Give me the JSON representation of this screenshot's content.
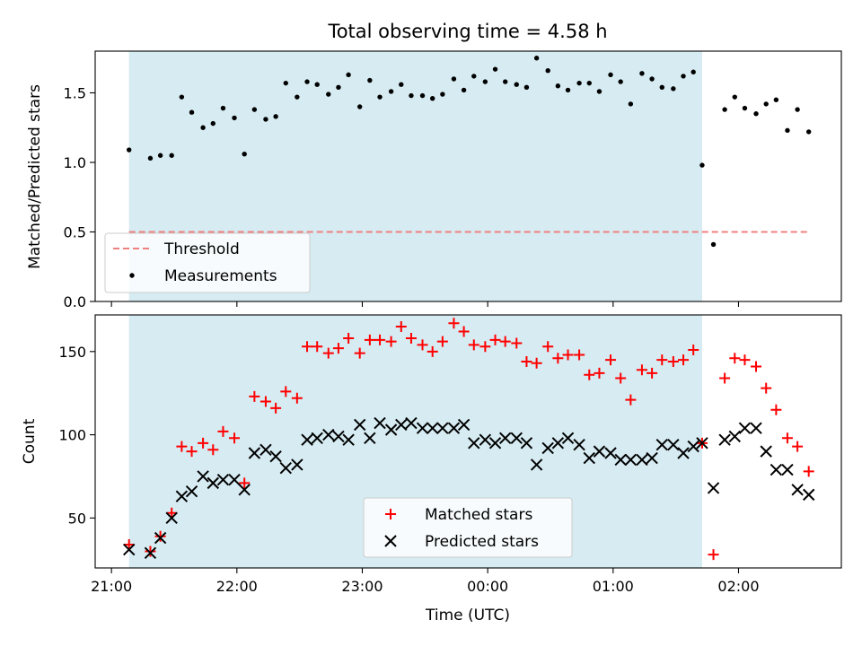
{
  "figure": {
    "title": "Total observing time = 4.58 h",
    "xlabel": "Time (UTC)",
    "xticks": [
      {
        "label": "21:00",
        "value": 21.0
      },
      {
        "label": "22:00",
        "value": 22.0
      },
      {
        "label": "23:00",
        "value": 23.0
      },
      {
        "label": "00:00",
        "value": 24.0
      },
      {
        "label": "01:00",
        "value": 25.0
      },
      {
        "label": "02:00",
        "value": 26.0
      }
    ]
  },
  "chart_data": [
    {
      "type": "scatter",
      "ylabel": "Matched/Predicted stars",
      "xlim": [
        20.87,
        26.82
      ],
      "ylim": [
        0.0,
        1.8
      ],
      "yticks": [
        "0.0",
        "0.5",
        "1.0",
        "1.5"
      ],
      "shaded_region": {
        "x_start": 21.14,
        "x_end": 25.71,
        "color": "#add8e6"
      },
      "threshold": {
        "name": "Threshold",
        "y": 0.5,
        "x_start": 21.14,
        "x_end": 26.57,
        "color": "#f08080"
      },
      "legend_position": "lower-left",
      "series": [
        {
          "name": "Measurements",
          "color": "#000000",
          "marker": "dot",
          "x": [
            21.14,
            21.31,
            21.39,
            21.48,
            21.56,
            21.64,
            21.73,
            21.81,
            21.89,
            21.98,
            22.06,
            22.14,
            22.23,
            22.31,
            22.39,
            22.48,
            22.56,
            22.64,
            22.73,
            22.81,
            22.89,
            22.98,
            23.06,
            23.14,
            23.23,
            23.31,
            23.39,
            23.48,
            23.56,
            23.64,
            23.73,
            23.81,
            23.89,
            23.98,
            24.06,
            24.14,
            24.23,
            24.31,
            24.39,
            24.48,
            24.56,
            24.64,
            24.73,
            24.81,
            24.89,
            24.98,
            25.06,
            25.14,
            25.23,
            25.31,
            25.39,
            25.48,
            25.56,
            25.64,
            25.71,
            25.8,
            25.89,
            25.97,
            26.05,
            26.14,
            26.22,
            26.3,
            26.39,
            26.47,
            26.56
          ],
          "y": [
            1.09,
            1.03,
            1.05,
            1.05,
            1.47,
            1.36,
            1.25,
            1.28,
            1.39,
            1.32,
            1.06,
            1.38,
            1.31,
            1.33,
            1.57,
            1.47,
            1.58,
            1.56,
            1.49,
            1.54,
            1.63,
            1.4,
            1.59,
            1.47,
            1.51,
            1.56,
            1.48,
            1.48,
            1.46,
            1.49,
            1.6,
            1.52,
            1.62,
            1.58,
            1.67,
            1.58,
            1.56,
            1.54,
            1.75,
            1.66,
            1.55,
            1.52,
            1.57,
            1.57,
            1.51,
            1.63,
            1.58,
            1.42,
            1.64,
            1.6,
            1.54,
            1.53,
            1.62,
            1.65,
            0.98,
            0.41,
            1.38,
            1.47,
            1.39,
            1.35,
            1.42,
            1.45,
            1.23,
            1.38,
            1.22
          ]
        }
      ]
    },
    {
      "type": "scatter",
      "ylabel": "Count",
      "xlim": [
        20.87,
        26.82
      ],
      "ylim": [
        20,
        172
      ],
      "yticks": [
        "50",
        "100",
        "150"
      ],
      "shaded_region": {
        "x_start": 21.14,
        "x_end": 25.71,
        "color": "#add8e6"
      },
      "legend_position": "lower-center",
      "series": [
        {
          "name": "Matched stars",
          "color": "#ff0000",
          "marker": "plus",
          "x": [
            21.14,
            21.31,
            21.39,
            21.48,
            21.56,
            21.64,
            21.73,
            21.81,
            21.89,
            21.98,
            22.06,
            22.14,
            22.23,
            22.31,
            22.39,
            22.48,
            22.56,
            22.64,
            22.73,
            22.81,
            22.89,
            22.98,
            23.06,
            23.14,
            23.23,
            23.31,
            23.39,
            23.48,
            23.56,
            23.64,
            23.73,
            23.81,
            23.89,
            23.98,
            24.06,
            24.14,
            24.23,
            24.31,
            24.39,
            24.48,
            24.56,
            24.64,
            24.73,
            24.81,
            24.89,
            24.98,
            25.06,
            25.14,
            25.23,
            25.31,
            25.39,
            25.48,
            25.56,
            25.64,
            25.71,
            25.8,
            25.89,
            25.97,
            26.05,
            26.14,
            26.22,
            26.3,
            26.39,
            26.47,
            26.56
          ],
          "y": [
            34,
            30,
            39,
            53,
            93,
            90,
            95,
            91,
            102,
            98,
            71,
            123,
            120,
            116,
            126,
            122,
            153,
            153,
            149,
            152,
            158,
            149,
            157,
            157,
            156,
            165,
            158,
            154,
            150,
            156,
            167,
            162,
            154,
            153,
            157,
            156,
            155,
            144,
            143,
            153,
            146,
            148,
            148,
            136,
            137,
            145,
            134,
            121,
            139,
            137,
            145,
            144,
            145,
            151,
            95,
            28,
            134,
            146,
            145,
            141,
            128,
            115,
            98,
            93,
            78
          ]
        },
        {
          "name": "Predicted stars",
          "color": "#000000",
          "marker": "x",
          "x": [
            21.14,
            21.31,
            21.39,
            21.48,
            21.56,
            21.64,
            21.73,
            21.81,
            21.89,
            21.98,
            22.06,
            22.14,
            22.23,
            22.31,
            22.39,
            22.48,
            22.56,
            22.64,
            22.73,
            22.81,
            22.89,
            22.98,
            23.06,
            23.14,
            23.23,
            23.31,
            23.39,
            23.48,
            23.56,
            23.64,
            23.73,
            23.81,
            23.89,
            23.98,
            24.06,
            24.14,
            24.23,
            24.31,
            24.39,
            24.48,
            24.56,
            24.64,
            24.73,
            24.81,
            24.89,
            24.98,
            25.06,
            25.14,
            25.23,
            25.31,
            25.39,
            25.48,
            25.56,
            25.64,
            25.71,
            25.8,
            25.89,
            25.97,
            26.05,
            26.14,
            26.22,
            26.3,
            26.39,
            26.47,
            26.56
          ],
          "y": [
            31,
            29,
            38,
            50,
            63,
            66,
            75,
            71,
            73,
            73,
            67,
            89,
            91,
            87,
            80,
            82,
            97,
            98,
            100,
            99,
            97,
            106,
            98,
            107,
            103,
            106,
            107,
            104,
            104,
            104,
            104,
            106,
            95,
            97,
            95,
            98,
            98,
            95,
            82,
            92,
            95,
            98,
            94,
            86,
            90,
            89,
            85,
            85,
            85,
            86,
            94,
            94,
            89,
            93,
            95,
            68,
            97,
            99,
            104,
            104,
            90,
            79,
            79,
            67,
            64
          ]
        }
      ]
    }
  ]
}
